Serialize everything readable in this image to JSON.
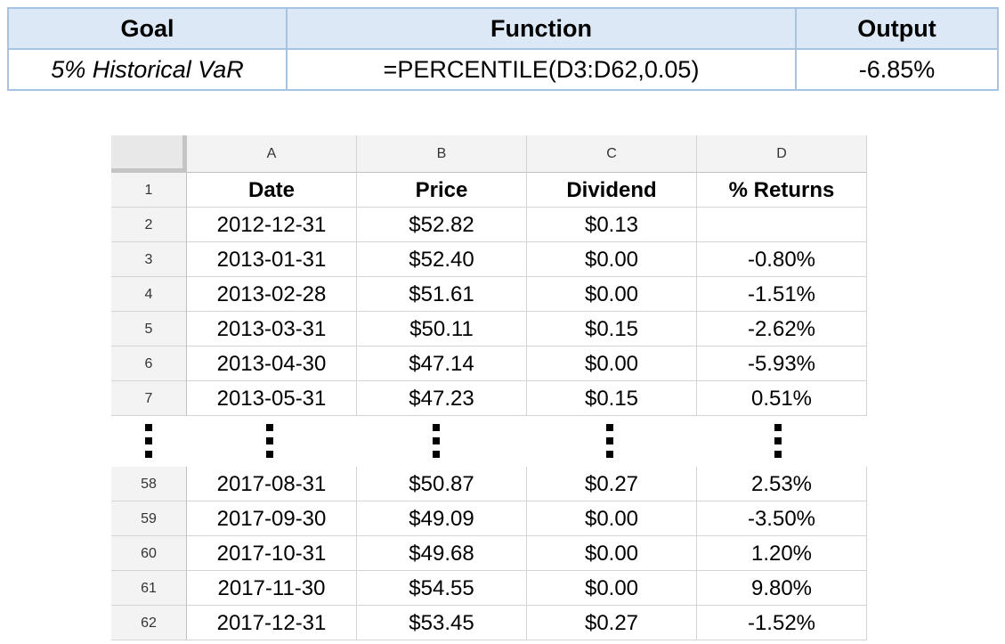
{
  "summary": {
    "headers": {
      "goal": "Goal",
      "function": "Function",
      "output": "Output"
    },
    "row": {
      "goal": "5% Historical VaR",
      "function": "=PERCENTILE(D3:D62,0.05)",
      "output": "-6.85%"
    }
  },
  "sheet": {
    "columns": [
      "A",
      "B",
      "C",
      "D"
    ],
    "header_row": {
      "num": "1",
      "date": "Date",
      "price": "Price",
      "dividend": "Dividend",
      "returns": "% Returns"
    },
    "top_rows": [
      {
        "num": "2",
        "date": "2012-12-31",
        "price": "$52.82",
        "dividend": "$0.13",
        "returns": ""
      },
      {
        "num": "3",
        "date": "2013-01-31",
        "price": "$52.40",
        "dividend": "$0.00",
        "returns": "-0.80%"
      },
      {
        "num": "4",
        "date": "2013-02-28",
        "price": "$51.61",
        "dividend": "$0.00",
        "returns": "-1.51%"
      },
      {
        "num": "5",
        "date": "2013-03-31",
        "price": "$50.11",
        "dividend": "$0.15",
        "returns": "-2.62%"
      },
      {
        "num": "6",
        "date": "2013-04-30",
        "price": "$47.14",
        "dividend": "$0.00",
        "returns": "-5.93%"
      },
      {
        "num": "7",
        "date": "2013-05-31",
        "price": "$47.23",
        "dividend": "$0.15",
        "returns": "0.51%"
      }
    ],
    "bottom_rows": [
      {
        "num": "58",
        "date": "2017-08-31",
        "price": "$50.87",
        "dividend": "$0.27",
        "returns": "2.53%"
      },
      {
        "num": "59",
        "date": "2017-09-30",
        "price": "$49.09",
        "dividend": "$0.00",
        "returns": "-3.50%"
      },
      {
        "num": "60",
        "date": "2017-10-31",
        "price": "$49.68",
        "dividend": "$0.00",
        "returns": "1.20%"
      },
      {
        "num": "61",
        "date": "2017-11-30",
        "price": "$54.55",
        "dividend": "$0.00",
        "returns": "9.80%"
      },
      {
        "num": "62",
        "date": "2017-12-31",
        "price": "$53.45",
        "dividend": "$0.27",
        "returns": "-1.52%"
      }
    ]
  }
}
